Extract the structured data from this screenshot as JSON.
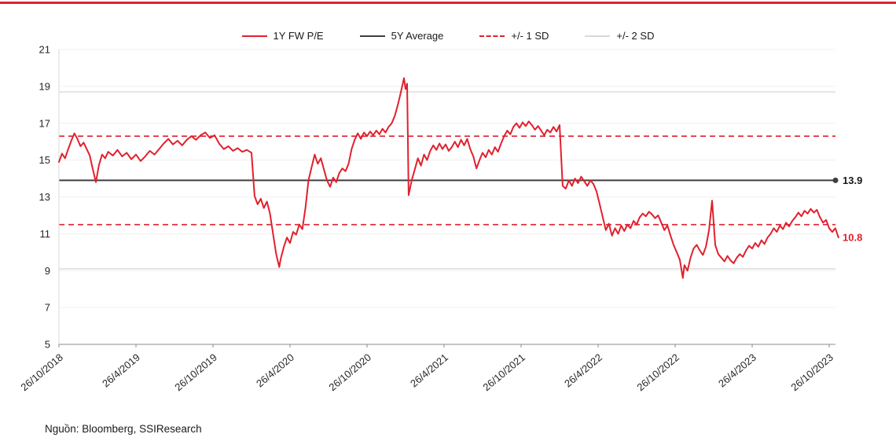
{
  "page": {
    "top_bar_color": "#e0212e",
    "source_note": "Nguồn: Bloomberg, SSIResearch"
  },
  "chart_data": {
    "type": "line",
    "title": "",
    "xlabel": "",
    "ylabel": "",
    "legend_position": "top-center",
    "grid": true,
    "legend": [
      {
        "label": "1Y FW P/E",
        "style": "solid",
        "color": "#e0212e"
      },
      {
        "label": "5Y Average",
        "style": "solid",
        "color": "#3f3f3f"
      },
      {
        "label": "+/- 1 SD",
        "style": "dashed",
        "color": "#e0212e"
      },
      {
        "label": "+/- 2 SD",
        "style": "solid",
        "color": "#d9d9d9"
      }
    ],
    "y_axis": {
      "min": 5,
      "max": 21,
      "ticks": [
        5,
        7,
        9,
        11,
        13,
        15,
        17,
        19,
        21
      ]
    },
    "x_ticks": [
      "26/10/2018",
      "26/4/2019",
      "26/10/2019",
      "26/4/2020",
      "26/10/2020",
      "26/4/2021",
      "26/10/2021",
      "26/4/2022",
      "26/10/2022",
      "26/4/2023",
      "26/10/2023"
    ],
    "x_tick_values": [
      0,
      0.5,
      1,
      1.5,
      2,
      2.5,
      3,
      3.5,
      4,
      4.5,
      5
    ],
    "x_domain": [
      0,
      5.06
    ],
    "reference_lines": {
      "average": {
        "value": 13.9,
        "label": "13.9",
        "color": "#3f3f3f"
      },
      "plus_1sd": {
        "value": 16.3,
        "color": "#e0212e",
        "style": "dashed"
      },
      "minus_1sd": {
        "value": 11.5,
        "color": "#e0212e",
        "style": "dashed"
      },
      "plus_2sd": {
        "value": 18.7,
        "color": "#d9d9d9",
        "style": "solid"
      },
      "minus_2sd": {
        "value": 9.1,
        "color": "#d9d9d9",
        "style": "solid"
      }
    },
    "last_value_label": {
      "value": 10.8,
      "label": "10.8",
      "color": "#e0212e"
    },
    "series": [
      {
        "name": "1Y FW P/E",
        "color": "#e0212e",
        "points": [
          [
            0,
            14.9
          ],
          [
            0.02,
            15.35
          ],
          [
            0.04,
            15.1
          ],
          [
            0.06,
            15.6
          ],
          [
            0.08,
            16.05
          ],
          [
            0.1,
            16.45
          ],
          [
            0.12,
            16.15
          ],
          [
            0.14,
            15.75
          ],
          [
            0.16,
            15.95
          ],
          [
            0.18,
            15.6
          ],
          [
            0.2,
            15.25
          ],
          [
            0.22,
            14.5
          ],
          [
            0.24,
            13.8
          ],
          [
            0.26,
            14.75
          ],
          [
            0.28,
            15.3
          ],
          [
            0.3,
            15.1
          ],
          [
            0.32,
            15.45
          ],
          [
            0.35,
            15.25
          ],
          [
            0.38,
            15.55
          ],
          [
            0.41,
            15.2
          ],
          [
            0.44,
            15.4
          ],
          [
            0.47,
            15.05
          ],
          [
            0.5,
            15.3
          ],
          [
            0.53,
            14.95
          ],
          [
            0.56,
            15.2
          ],
          [
            0.59,
            15.5
          ],
          [
            0.62,
            15.3
          ],
          [
            0.65,
            15.6
          ],
          [
            0.68,
            15.9
          ],
          [
            0.71,
            16.15
          ],
          [
            0.74,
            15.85
          ],
          [
            0.77,
            16.05
          ],
          [
            0.8,
            15.8
          ],
          [
            0.83,
            16.1
          ],
          [
            0.86,
            16.3
          ],
          [
            0.89,
            16.1
          ],
          [
            0.92,
            16.35
          ],
          [
            0.95,
            16.5
          ],
          [
            0.98,
            16.2
          ],
          [
            1.01,
            16.35
          ],
          [
            1.04,
            15.9
          ],
          [
            1.07,
            15.6
          ],
          [
            1.1,
            15.75
          ],
          [
            1.13,
            15.5
          ],
          [
            1.16,
            15.65
          ],
          [
            1.19,
            15.45
          ],
          [
            1.22,
            15.55
          ],
          [
            1.25,
            15.4
          ],
          [
            1.27,
            13.05
          ],
          [
            1.29,
            12.6
          ],
          [
            1.31,
            12.9
          ],
          [
            1.33,
            12.4
          ],
          [
            1.35,
            12.75
          ],
          [
            1.37,
            12.1
          ],
          [
            1.39,
            11.0
          ],
          [
            1.41,
            9.9
          ],
          [
            1.43,
            9.2
          ],
          [
            1.44,
            9.65
          ],
          [
            1.46,
            10.3
          ],
          [
            1.48,
            10.8
          ],
          [
            1.5,
            10.5
          ],
          [
            1.52,
            11.1
          ],
          [
            1.54,
            10.95
          ],
          [
            1.56,
            11.5
          ],
          [
            1.58,
            11.25
          ],
          [
            1.6,
            12.4
          ],
          [
            1.62,
            13.9
          ],
          [
            1.64,
            14.6
          ],
          [
            1.66,
            15.3
          ],
          [
            1.68,
            14.8
          ],
          [
            1.7,
            15.1
          ],
          [
            1.72,
            14.5
          ],
          [
            1.74,
            13.9
          ],
          [
            1.76,
            13.55
          ],
          [
            1.78,
            14.05
          ],
          [
            1.8,
            13.8
          ],
          [
            1.82,
            14.3
          ],
          [
            1.84,
            14.55
          ],
          [
            1.86,
            14.4
          ],
          [
            1.88,
            14.8
          ],
          [
            1.9,
            15.6
          ],
          [
            1.92,
            16.1
          ],
          [
            1.94,
            16.45
          ],
          [
            1.96,
            16.15
          ],
          [
            1.98,
            16.5
          ],
          [
            2.0,
            16.3
          ],
          [
            2.02,
            16.55
          ],
          [
            2.04,
            16.35
          ],
          [
            2.06,
            16.6
          ],
          [
            2.08,
            16.4
          ],
          [
            2.1,
            16.7
          ],
          [
            2.12,
            16.5
          ],
          [
            2.14,
            16.8
          ],
          [
            2.16,
            17.0
          ],
          [
            2.18,
            17.4
          ],
          [
            2.2,
            18.0
          ],
          [
            2.22,
            18.7
          ],
          [
            2.24,
            19.45
          ],
          [
            2.25,
            18.85
          ],
          [
            2.26,
            19.15
          ],
          [
            2.27,
            13.1
          ],
          [
            2.29,
            13.9
          ],
          [
            2.31,
            14.5
          ],
          [
            2.33,
            15.1
          ],
          [
            2.35,
            14.7
          ],
          [
            2.37,
            15.3
          ],
          [
            2.39,
            15.0
          ],
          [
            2.41,
            15.5
          ],
          [
            2.43,
            15.8
          ],
          [
            2.45,
            15.55
          ],
          [
            2.47,
            15.9
          ],
          [
            2.49,
            15.6
          ],
          [
            2.51,
            15.85
          ],
          [
            2.53,
            15.5
          ],
          [
            2.55,
            15.7
          ],
          [
            2.57,
            16.0
          ],
          [
            2.59,
            15.7
          ],
          [
            2.61,
            16.1
          ],
          [
            2.63,
            15.8
          ],
          [
            2.65,
            16.15
          ],
          [
            2.67,
            15.6
          ],
          [
            2.69,
            15.2
          ],
          [
            2.71,
            14.55
          ],
          [
            2.73,
            15.0
          ],
          [
            2.75,
            15.4
          ],
          [
            2.77,
            15.15
          ],
          [
            2.79,
            15.55
          ],
          [
            2.81,
            15.3
          ],
          [
            2.83,
            15.7
          ],
          [
            2.85,
            15.45
          ],
          [
            2.87,
            15.9
          ],
          [
            2.89,
            16.3
          ],
          [
            2.91,
            16.6
          ],
          [
            2.93,
            16.4
          ],
          [
            2.95,
            16.8
          ],
          [
            2.97,
            17.0
          ],
          [
            2.99,
            16.75
          ],
          [
            3.01,
            17.05
          ],
          [
            3.03,
            16.85
          ],
          [
            3.05,
            17.1
          ],
          [
            3.07,
            16.9
          ],
          [
            3.09,
            16.65
          ],
          [
            3.11,
            16.85
          ],
          [
            3.13,
            16.6
          ],
          [
            3.15,
            16.35
          ],
          [
            3.17,
            16.65
          ],
          [
            3.19,
            16.5
          ],
          [
            3.21,
            16.8
          ],
          [
            3.23,
            16.55
          ],
          [
            3.25,
            16.9
          ],
          [
            3.27,
            13.6
          ],
          [
            3.29,
            13.45
          ],
          [
            3.31,
            13.9
          ],
          [
            3.33,
            13.6
          ],
          [
            3.35,
            14.0
          ],
          [
            3.37,
            13.75
          ],
          [
            3.39,
            14.1
          ],
          [
            3.41,
            13.85
          ],
          [
            3.43,
            13.6
          ],
          [
            3.45,
            13.9
          ],
          [
            3.47,
            13.7
          ],
          [
            3.49,
            13.3
          ],
          [
            3.51,
            12.6
          ],
          [
            3.53,
            11.9
          ],
          [
            3.55,
            11.2
          ],
          [
            3.57,
            11.55
          ],
          [
            3.59,
            10.9
          ],
          [
            3.61,
            11.3
          ],
          [
            3.63,
            11.0
          ],
          [
            3.65,
            11.45
          ],
          [
            3.67,
            11.15
          ],
          [
            3.69,
            11.5
          ],
          [
            3.71,
            11.3
          ],
          [
            3.73,
            11.7
          ],
          [
            3.75,
            11.5
          ],
          [
            3.77,
            11.9
          ],
          [
            3.79,
            12.1
          ],
          [
            3.81,
            11.95
          ],
          [
            3.83,
            12.2
          ],
          [
            3.85,
            12.05
          ],
          [
            3.87,
            11.85
          ],
          [
            3.89,
            12.0
          ],
          [
            3.91,
            11.6
          ],
          [
            3.93,
            11.2
          ],
          [
            3.95,
            11.45
          ],
          [
            3.97,
            10.9
          ],
          [
            3.99,
            10.4
          ],
          [
            4.01,
            10.0
          ],
          [
            4.03,
            9.6
          ],
          [
            4.05,
            8.6
          ],
          [
            4.06,
            9.3
          ],
          [
            4.08,
            9.0
          ],
          [
            4.1,
            9.7
          ],
          [
            4.12,
            10.2
          ],
          [
            4.14,
            10.4
          ],
          [
            4.16,
            10.1
          ],
          [
            4.18,
            9.85
          ],
          [
            4.2,
            10.3
          ],
          [
            4.22,
            11.2
          ],
          [
            4.24,
            12.8
          ],
          [
            4.26,
            10.4
          ],
          [
            4.28,
            9.9
          ],
          [
            4.3,
            9.7
          ],
          [
            4.32,
            9.5
          ],
          [
            4.34,
            9.8
          ],
          [
            4.36,
            9.55
          ],
          [
            4.38,
            9.4
          ],
          [
            4.4,
            9.7
          ],
          [
            4.42,
            9.9
          ],
          [
            4.44,
            9.75
          ],
          [
            4.46,
            10.1
          ],
          [
            4.48,
            10.35
          ],
          [
            4.5,
            10.2
          ],
          [
            4.52,
            10.5
          ],
          [
            4.54,
            10.3
          ],
          [
            4.56,
            10.65
          ],
          [
            4.58,
            10.45
          ],
          [
            4.6,
            10.8
          ],
          [
            4.62,
            11.0
          ],
          [
            4.64,
            11.3
          ],
          [
            4.66,
            11.1
          ],
          [
            4.68,
            11.45
          ],
          [
            4.7,
            11.25
          ],
          [
            4.72,
            11.6
          ],
          [
            4.74,
            11.4
          ],
          [
            4.76,
            11.7
          ],
          [
            4.78,
            11.9
          ],
          [
            4.8,
            12.15
          ],
          [
            4.82,
            11.95
          ],
          [
            4.84,
            12.25
          ],
          [
            4.86,
            12.1
          ],
          [
            4.88,
            12.35
          ],
          [
            4.9,
            12.15
          ],
          [
            4.92,
            12.3
          ],
          [
            4.94,
            11.9
          ],
          [
            4.96,
            11.6
          ],
          [
            4.98,
            11.75
          ],
          [
            5.0,
            11.3
          ],
          [
            5.02,
            11.1
          ],
          [
            5.04,
            11.3
          ],
          [
            5.06,
            10.8
          ]
        ]
      }
    ]
  }
}
